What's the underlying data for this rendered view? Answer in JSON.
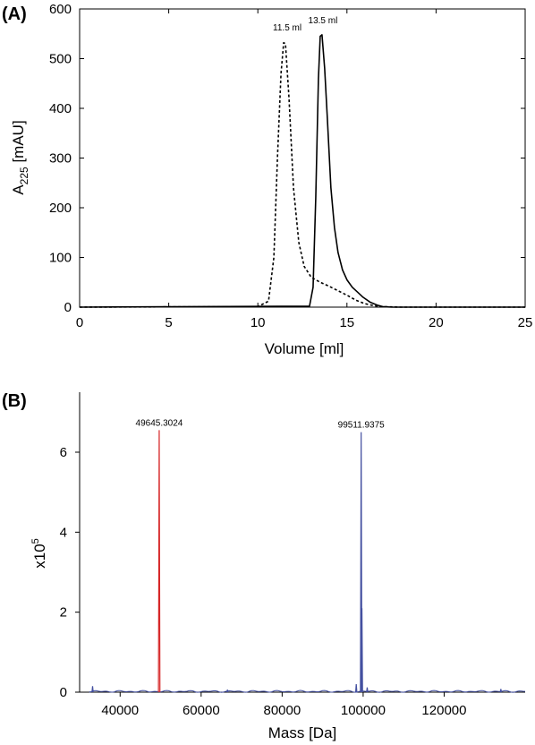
{
  "chart_data": [
    {
      "type": "line",
      "panel_label": "(A)",
      "xlabel": "Volume [ml]",
      "ylabel_main": "A",
      "ylabel_sub": "225",
      "ylabel_unit": " [mAU]",
      "xlim": [
        0,
        25
      ],
      "ylim": [
        0,
        600
      ],
      "xticks": [
        0,
        5,
        10,
        15,
        20,
        25
      ],
      "yticks": [
        0,
        100,
        200,
        300,
        400,
        500,
        600
      ],
      "grid": false,
      "series": [
        {
          "style": "dashed",
          "color": "#000000",
          "x": [
            0,
            10,
            10.6,
            10.9,
            11.1,
            11.3,
            11.45,
            11.55,
            11.75,
            12.0,
            12.3,
            12.6,
            13.0,
            13.5,
            14.0,
            14.5,
            15.0,
            15.5,
            16.0,
            16.5,
            17.0,
            17.5,
            18.0,
            25
          ],
          "y": [
            0,
            1,
            12,
            100,
            300,
            470,
            532,
            530,
            420,
            240,
            130,
            82,
            60,
            50,
            42,
            33,
            24,
            14,
            7,
            3,
            1,
            0.5,
            0,
            0
          ]
        },
        {
          "style": "solid",
          "color": "#000000",
          "x": [
            0,
            12.9,
            13.1,
            13.25,
            13.4,
            13.5,
            13.6,
            13.75,
            13.9,
            14.1,
            14.3,
            14.5,
            14.75,
            15.0,
            15.3,
            15.6,
            15.9,
            16.3,
            16.7,
            17.0,
            17.5,
            25
          ],
          "y": [
            0,
            2,
            40,
            220,
            460,
            545,
            548,
            480,
            380,
            240,
            160,
            110,
            75,
            55,
            40,
            30,
            20,
            10,
            4,
            1,
            0,
            0
          ]
        }
      ],
      "annotations": [
        {
          "text": "11.5 ml",
          "x": 11.5,
          "y": 535
        },
        {
          "text": "13.5 ml",
          "x": 13.5,
          "y": 550
        }
      ]
    },
    {
      "type": "line",
      "panel_label": "(B)",
      "xlabel": "Mass [Da]",
      "ylabel_main": "x10",
      "ylabel_sup": "5",
      "xlim": [
        30000,
        140000
      ],
      "ylim": [
        0,
        7.5
      ],
      "xticks": [
        40000,
        60000,
        80000,
        100000,
        120000
      ],
      "yticks": [
        0,
        2,
        4,
        6
      ],
      "grid": false,
      "series": [
        {
          "color": "#d62728",
          "peaks": [
            {
              "x": 49645.3024,
              "y": 6.55,
              "label": "49645.3024"
            }
          ]
        },
        {
          "color": "#4450a0",
          "peaks": [
            {
              "x": 99511.9375,
              "y": 6.5,
              "label": "99511.9375"
            },
            {
              "x": 99700,
              "y": 2.1
            },
            {
              "x": 33200,
              "y": 0.15
            },
            {
              "x": 98300,
              "y": 0.2
            },
            {
              "x": 101000,
              "y": 0.12
            },
            {
              "x": 66500,
              "y": 0.06
            },
            {
              "x": 134000,
              "y": 0.08
            }
          ]
        }
      ]
    }
  ]
}
